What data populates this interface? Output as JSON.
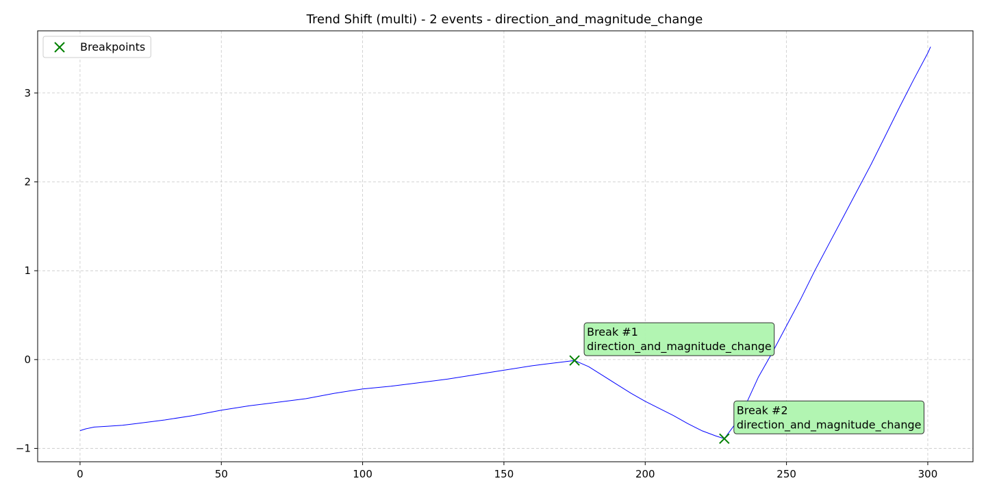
{
  "chart_data": {
    "type": "line",
    "title": "Trend Shift (multi) - 2 events - direction_and_magnitude_change",
    "xlabel": "",
    "ylabel": "",
    "xlim": [
      -15,
      316
    ],
    "ylim": [
      -1.15,
      3.7
    ],
    "x_ticks": [
      0,
      50,
      100,
      150,
      200,
      250,
      300
    ],
    "y_ticks": [
      -1,
      0,
      1,
      2,
      3
    ],
    "grid": true,
    "legend": {
      "placement": "top-left",
      "entries": [
        "Breakpoints"
      ]
    },
    "series": [
      {
        "style": "line",
        "color": "#0000ff",
        "x": [
          0,
          2,
          5,
          10,
          15,
          20,
          25,
          30,
          40,
          50,
          60,
          70,
          80,
          90,
          100,
          110,
          120,
          130,
          140,
          150,
          160,
          165,
          170,
          175,
          180,
          185,
          190,
          195,
          200,
          205,
          210,
          215,
          220,
          225,
          228,
          232,
          236,
          240,
          245,
          250,
          255,
          260,
          265,
          270,
          275,
          280,
          285,
          290,
          295,
          300,
          301
        ],
        "y": [
          -0.8,
          -0.78,
          -0.76,
          -0.75,
          -0.74,
          -0.72,
          -0.7,
          -0.68,
          -0.63,
          -0.57,
          -0.52,
          -0.48,
          -0.44,
          -0.38,
          -0.33,
          -0.3,
          -0.26,
          -0.22,
          -0.17,
          -0.12,
          -0.07,
          -0.05,
          -0.03,
          -0.01,
          -0.08,
          -0.18,
          -0.28,
          -0.38,
          -0.47,
          -0.55,
          -0.63,
          -0.72,
          -0.8,
          -0.86,
          -0.89,
          -0.72,
          -0.48,
          -0.2,
          0.08,
          0.38,
          0.68,
          1.0,
          1.3,
          1.6,
          1.9,
          2.2,
          2.52,
          2.84,
          3.15,
          3.45,
          3.52
        ]
      },
      {
        "name": "Breakpoints",
        "style": "scatter",
        "marker": "x",
        "color": "#008000",
        "x": [
          175,
          228
        ],
        "y": [
          -0.01,
          -0.89
        ]
      }
    ],
    "annotations": [
      {
        "x": 175,
        "y": -0.01,
        "lines": [
          "Break #1",
          "direction_and_magnitude_change"
        ],
        "bg": "#aef5ae"
      },
      {
        "x": 228,
        "y": -0.89,
        "lines": [
          "Break #2",
          "direction_and_magnitude_change"
        ],
        "bg": "#aef5ae"
      }
    ]
  }
}
